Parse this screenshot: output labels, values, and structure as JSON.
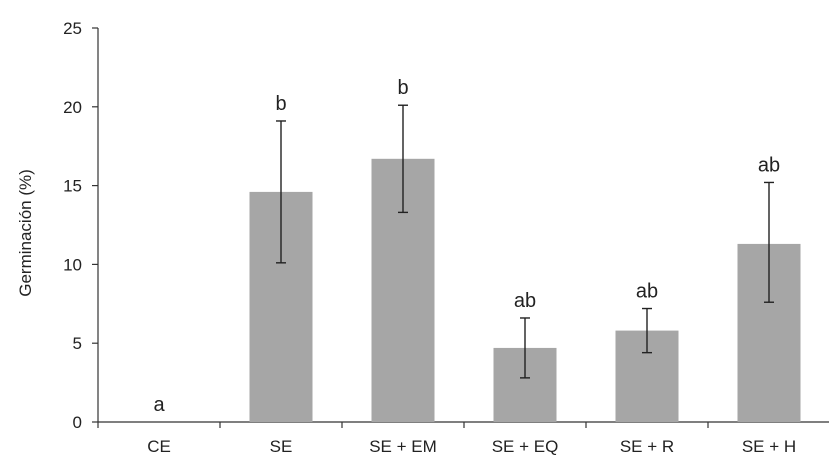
{
  "chart_data": {
    "type": "bar",
    "categories": [
      "CE",
      "SE",
      "SE + EM",
      "SE + EQ",
      "SE + R",
      "SE + H"
    ],
    "values": [
      0,
      14.6,
      16.7,
      4.7,
      5.8,
      11.3
    ],
    "error_low": [
      0,
      10.1,
      13.3,
      2.8,
      4.4,
      7.6
    ],
    "error_high": [
      0,
      19.1,
      20.1,
      6.6,
      7.2,
      15.2
    ],
    "labels": [
      "a",
      "b",
      "b",
      "ab",
      "ab",
      "ab"
    ],
    "ylabel": "Germinación (%)",
    "xlabel": "",
    "ylim": [
      0,
      25
    ],
    "yticks": [
      0,
      5,
      10,
      15,
      20,
      25
    ],
    "bar_color": "#a6a6a6",
    "grid": false
  }
}
